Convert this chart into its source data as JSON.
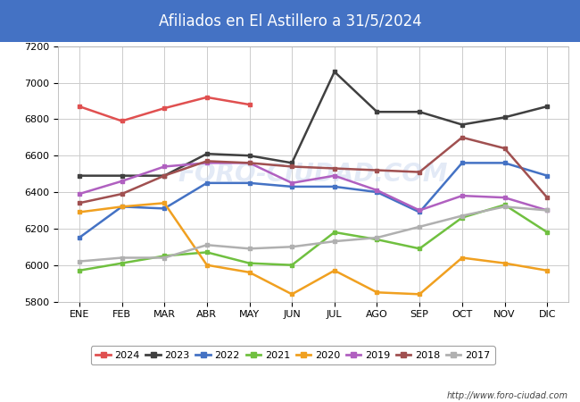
{
  "title": "Afiliados en El Astillero a 31/5/2024",
  "title_bg_color": "#4472c4",
  "title_text_color": "#ffffff",
  "ylim": [
    5800,
    7200
  ],
  "yticks": [
    5800,
    6000,
    6200,
    6400,
    6600,
    6800,
    7000,
    7200
  ],
  "months": [
    "ENE",
    "FEB",
    "MAR",
    "ABR",
    "MAY",
    "JUN",
    "JUL",
    "AGO",
    "SEP",
    "OCT",
    "NOV",
    "DIC"
  ],
  "watermark": "FORO-CIUDAD.COM",
  "footer_url": "http://www.foro-ciudad.com",
  "series": {
    "2024": {
      "color": "#e05050",
      "values": [
        6870,
        6790,
        6860,
        6920,
        6880,
        null,
        null,
        null,
        null,
        null,
        null,
        null
      ]
    },
    "2023": {
      "color": "#404040",
      "values": [
        6490,
        6490,
        6490,
        6610,
        6600,
        6560,
        7060,
        6840,
        6840,
        6770,
        6810,
        6870
      ]
    },
    "2022": {
      "color": "#4472c4",
      "values": [
        6150,
        6320,
        6310,
        6450,
        6450,
        6430,
        6430,
        6400,
        6290,
        6560,
        6560,
        6490
      ]
    },
    "2021": {
      "color": "#70c040",
      "values": [
        5970,
        6010,
        6050,
        6070,
        6010,
        6000,
        6180,
        6140,
        6090,
        6260,
        6330,
        6180
      ]
    },
    "2020": {
      "color": "#f0a020",
      "values": [
        6290,
        6320,
        6340,
        6000,
        5960,
        5840,
        5970,
        5850,
        5840,
        6040,
        6010,
        5970
      ]
    },
    "2019": {
      "color": "#b060c0",
      "values": [
        6390,
        6460,
        6540,
        6560,
        6560,
        6450,
        6490,
        6410,
        6300,
        6380,
        6370,
        6300
      ]
    },
    "2018": {
      "color": "#a05050",
      "values": [
        6340,
        6390,
        6490,
        6570,
        6560,
        6540,
        6530,
        6520,
        6510,
        6700,
        6640,
        6370
      ]
    },
    "2017": {
      "color": "#b0b0b0",
      "values": [
        6020,
        6040,
        6040,
        6110,
        6090,
        6100,
        6130,
        6150,
        6210,
        6270,
        6320,
        6300
      ]
    }
  },
  "legend_order": [
    "2024",
    "2023",
    "2022",
    "2021",
    "2020",
    "2019",
    "2018",
    "2017"
  ],
  "bg_color": "#ffffff",
  "plot_bg_color": "#ffffff",
  "grid_color": "#cccccc"
}
